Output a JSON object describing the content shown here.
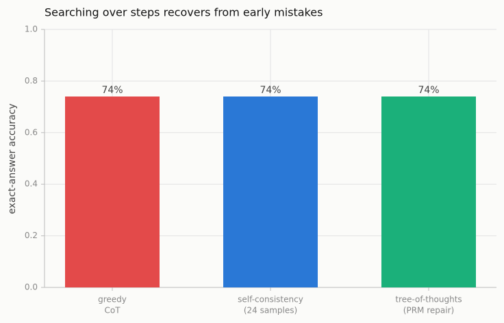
{
  "chart_data": {
    "type": "bar",
    "title": "Searching over steps recovers from early mistakes",
    "y_label": "exact-answer accuracy",
    "categories": [
      [
        "greedy",
        "CoT"
      ],
      [
        "self-consistency",
        "(24 samples)"
      ],
      [
        "tree-of-thoughts",
        "(PRM repair)"
      ]
    ],
    "values": [
      0.74,
      0.74,
      0.74
    ],
    "value_labels": [
      "74%",
      "74%",
      "74%"
    ],
    "colors": [
      "#e34a4a",
      "#2a78d6",
      "#1bb07a"
    ],
    "ylim": [
      0,
      1
    ],
    "yticks": [
      {
        "value": 0,
        "label": "0.0"
      },
      {
        "value": 0.2,
        "label": "0.2"
      },
      {
        "value": 0.4,
        "label": "0.4"
      },
      {
        "value": 0.6,
        "label": "0.6"
      },
      {
        "value": 0.8,
        "label": "0.8"
      },
      {
        "value": 1,
        "label": "1.0"
      }
    ],
    "grid": true
  }
}
